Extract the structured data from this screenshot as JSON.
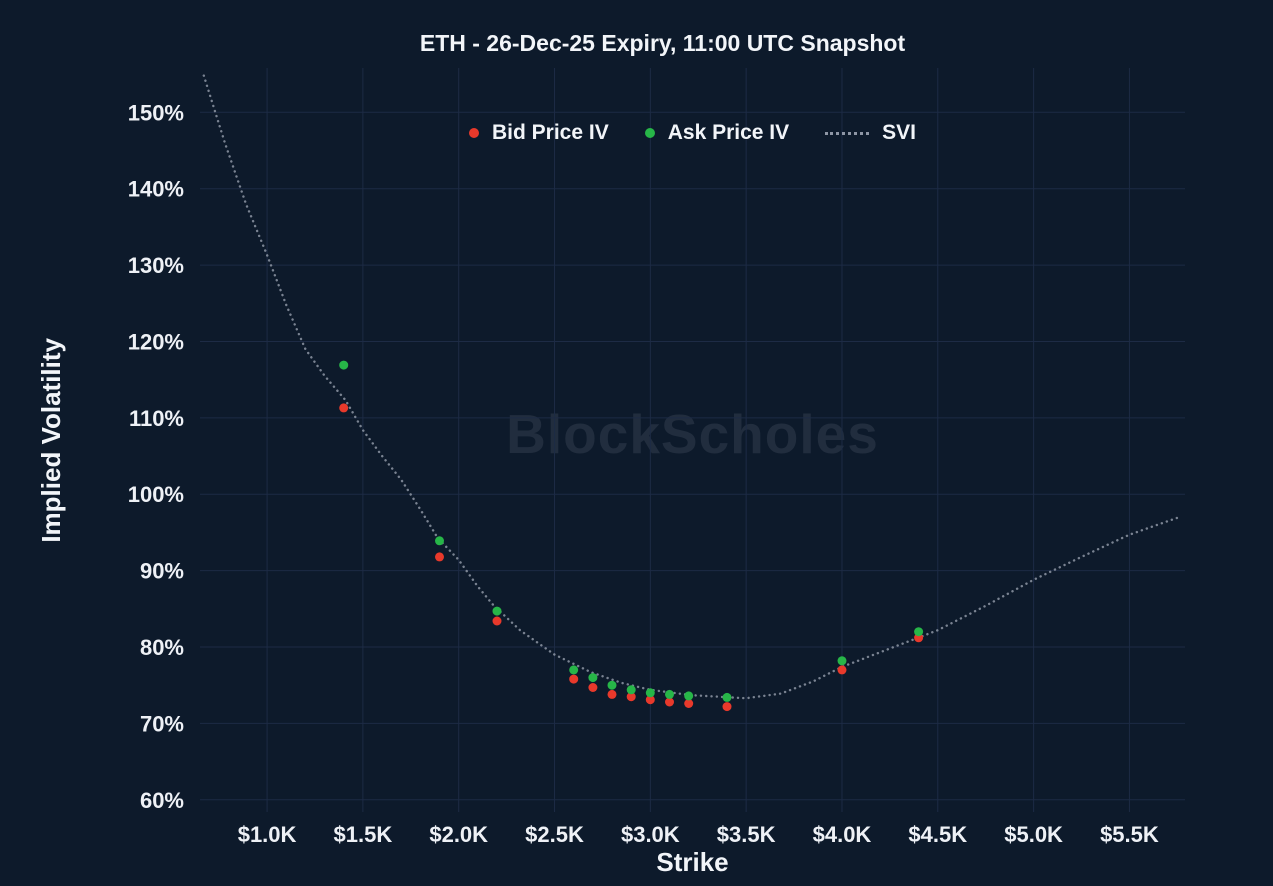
{
  "title": "ETH - 26-Dec-25 Expiry, 11:00 UTC Snapshot",
  "watermark": "BlockScholes",
  "axes": {
    "x_label": "Strike",
    "y_label": "Implied Volatility"
  },
  "colors": {
    "background": "#0d1a2b",
    "grid": "#1d2b45",
    "text": "#f2f5f9",
    "bid": "#e8392b",
    "ask": "#27b648",
    "svi": "#8e96a5"
  },
  "legend": [
    {
      "label": "Bid Price IV",
      "marker": "dot",
      "color": "#e8392b"
    },
    {
      "label": "Ask Price IV",
      "marker": "dot",
      "color": "#27b648"
    },
    {
      "label": "SVI",
      "marker": "dotted-line",
      "color": "#8e96a5"
    }
  ],
  "chart_data": {
    "type": "scatter",
    "title": "ETH - 26-Dec-25 Expiry, 11:00 UTC Snapshot",
    "xlabel": "Strike",
    "ylabel": "Implied Volatility",
    "x_unit": "USD thousands",
    "y_unit": "percent IV",
    "xlim": [
      0.65,
      5.79
    ],
    "ylim": [
      58.4,
      155.8
    ],
    "grid": true,
    "legend_position": "top-center",
    "x_ticks": [
      1.0,
      1.5,
      2.0,
      2.5,
      3.0,
      3.5,
      4.0,
      4.5,
      5.0,
      5.5
    ],
    "x_tick_labels": [
      "$1.0K",
      "$1.5K",
      "$2.0K",
      "$2.5K",
      "$3.0K",
      "$3.5K",
      "$4.0K",
      "$4.5K",
      "$5.0K",
      "$5.5K"
    ],
    "y_ticks": [
      60,
      70,
      80,
      90,
      100,
      110,
      120,
      130,
      140,
      150
    ],
    "y_tick_labels": [
      "60%",
      "70%",
      "80%",
      "90%",
      "100%",
      "110%",
      "120%",
      "130%",
      "140%",
      "150%"
    ],
    "series": [
      {
        "name": "Bid Price IV",
        "type": "scatter",
        "color": "#e8392b",
        "x": [
          1.4,
          1.9,
          2.2,
          2.6,
          2.7,
          2.8,
          2.9,
          3.0,
          3.1,
          3.2,
          3.4,
          4.0,
          4.4
        ],
        "y": [
          111.3,
          91.8,
          83.4,
          75.8,
          74.7,
          73.8,
          73.5,
          73.1,
          72.8,
          72.6,
          72.2,
          77.0,
          81.2
        ]
      },
      {
        "name": "Ask Price IV",
        "type": "scatter",
        "color": "#27b648",
        "x": [
          1.4,
          1.9,
          2.2,
          2.6,
          2.7,
          2.8,
          2.9,
          3.0,
          3.1,
          3.2,
          3.4,
          4.0,
          4.4
        ],
        "y": [
          116.9,
          93.9,
          84.7,
          77.0,
          76.0,
          75.0,
          74.4,
          74.0,
          73.8,
          73.6,
          73.4,
          78.2,
          82.0
        ]
      },
      {
        "name": "SVI",
        "type": "line",
        "style": "dotted",
        "color": "#8e96a5",
        "x": [
          0.67,
          0.78,
          0.89,
          1.0,
          1.1,
          1.2,
          1.3,
          1.41,
          1.5,
          1.6,
          1.7,
          1.8,
          1.89,
          2.0,
          2.1,
          2.18,
          2.32,
          2.5,
          2.69,
          2.85,
          3.0,
          3.21,
          3.42,
          3.5,
          3.68,
          3.85,
          4.0,
          4.25,
          4.5,
          4.75,
          5.0,
          5.25,
          5.5,
          5.76
        ],
        "y": [
          154.8,
          146.0,
          138.0,
          131.3,
          124.8,
          119.0,
          115.5,
          112.3,
          108.4,
          105.0,
          101.9,
          98.0,
          94.3,
          91.4,
          87.9,
          85.5,
          82.2,
          79.0,
          76.7,
          75.3,
          74.4,
          73.7,
          73.4,
          73.3,
          73.9,
          75.5,
          77.4,
          79.8,
          82.2,
          85.4,
          88.8,
          91.8,
          94.7,
          97.0
        ]
      }
    ]
  }
}
